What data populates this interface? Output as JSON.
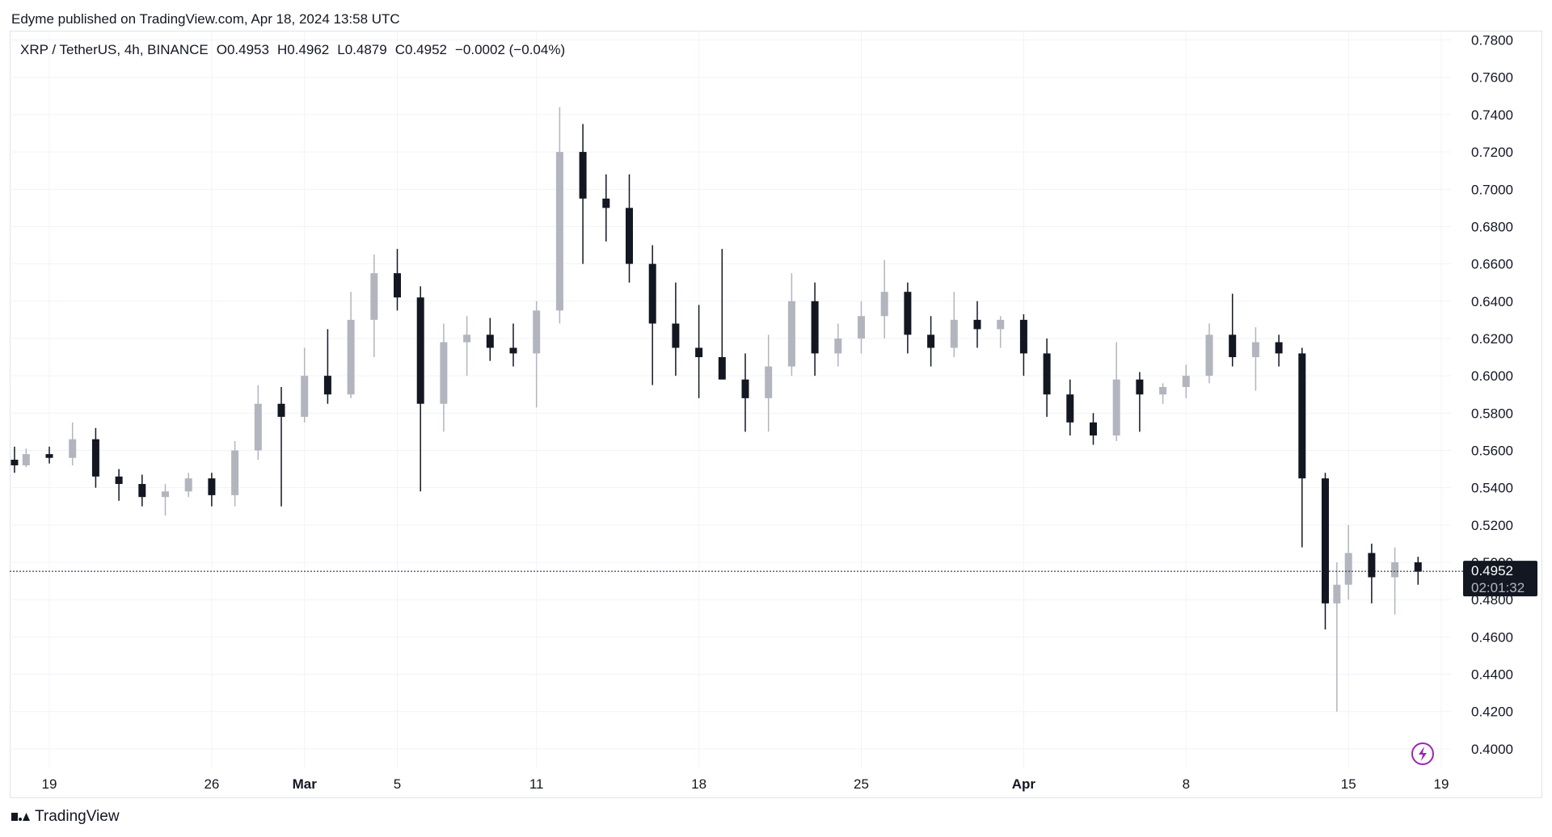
{
  "header": {
    "publisher": "Edyme published on TradingView.com, Apr 18, 2024 13:58 UTC"
  },
  "legend": {
    "symbol": "XRP / TetherUS, 4h, BINANCE",
    "open": "O0.4953",
    "high": "H0.4962",
    "low": "L0.4879",
    "close": "C0.4952",
    "change": "−0.0002 (−0.04%)"
  },
  "last_price": {
    "value": "0.4952",
    "countdown": "02:01:32"
  },
  "brand": {
    "name": "TradingView"
  },
  "colors": {
    "up": "#b2b5be",
    "down": "#131722",
    "grid": "#f0f3fa",
    "accent": "#9c27b0"
  },
  "icons": {
    "lightning": "lightning-icon",
    "logo": "tradingview-logo-icon"
  },
  "chart_data": {
    "type": "candlestick",
    "symbol": "XRP / TetherUS",
    "interval": "4h",
    "exchange": "BINANCE",
    "ylim": [
      0.39,
      0.785
    ],
    "y_ticks": [
      "0.7800",
      "0.7600",
      "0.7400",
      "0.7200",
      "0.7000",
      "0.6800",
      "0.6600",
      "0.6400",
      "0.6200",
      "0.6000",
      "0.5800",
      "0.5600",
      "0.5400",
      "0.5200",
      "0.5000",
      "0.4800",
      "0.4600",
      "0.4400",
      "0.4200",
      "0.4000"
    ],
    "x_ticks": [
      {
        "label": "19",
        "day": 0,
        "bold": false
      },
      {
        "label": "26",
        "day": 7,
        "bold": false
      },
      {
        "label": "Mar",
        "day": 11,
        "bold": true
      },
      {
        "label": "5",
        "day": 15,
        "bold": false
      },
      {
        "label": "11",
        "day": 21,
        "bold": false
      },
      {
        "label": "18",
        "day": 28,
        "bold": false
      },
      {
        "label": "25",
        "day": 35,
        "bold": false
      },
      {
        "label": "Apr",
        "day": 42,
        "bold": true
      },
      {
        "label": "8",
        "day": 49,
        "bold": false
      },
      {
        "label": "15",
        "day": 56,
        "bold": false
      },
      {
        "label": "19",
        "day": 60,
        "bold": false
      }
    ],
    "last_price": 0.4952,
    "ohlc_daily": [
      [
        -1.5,
        0.555,
        0.562,
        0.548,
        0.552
      ],
      [
        -1,
        0.552,
        0.561,
        0.551,
        0.558
      ],
      [
        0,
        0.558,
        0.562,
        0.553,
        0.556
      ],
      [
        1,
        0.556,
        0.575,
        0.552,
        0.566
      ],
      [
        2,
        0.566,
        0.572,
        0.54,
        0.546
      ],
      [
        3,
        0.546,
        0.55,
        0.533,
        0.542
      ],
      [
        4,
        0.542,
        0.547,
        0.53,
        0.535
      ],
      [
        5,
        0.535,
        0.542,
        0.525,
        0.538
      ],
      [
        6,
        0.538,
        0.548,
        0.535,
        0.545
      ],
      [
        7,
        0.545,
        0.548,
        0.53,
        0.536
      ],
      [
        8,
        0.536,
        0.565,
        0.53,
        0.56
      ],
      [
        9,
        0.56,
        0.595,
        0.555,
        0.585
      ],
      [
        10,
        0.585,
        0.594,
        0.53,
        0.578
      ],
      [
        11,
        0.578,
        0.615,
        0.575,
        0.6
      ],
      [
        12,
        0.6,
        0.625,
        0.585,
        0.59
      ],
      [
        13,
        0.59,
        0.645,
        0.588,
        0.63
      ],
      [
        14,
        0.63,
        0.665,
        0.61,
        0.655
      ],
      [
        15,
        0.655,
        0.668,
        0.635,
        0.642
      ],
      [
        16,
        0.642,
        0.648,
        0.538,
        0.585
      ],
      [
        17,
        0.585,
        0.628,
        0.57,
        0.618
      ],
      [
        18,
        0.618,
        0.632,
        0.6,
        0.622
      ],
      [
        19,
        0.622,
        0.631,
        0.608,
        0.615
      ],
      [
        20,
        0.615,
        0.628,
        0.605,
        0.612
      ],
      [
        21,
        0.612,
        0.64,
        0.583,
        0.635
      ],
      [
        22,
        0.635,
        0.744,
        0.628,
        0.72
      ],
      [
        23,
        0.72,
        0.735,
        0.66,
        0.695
      ],
      [
        24,
        0.695,
        0.708,
        0.672,
        0.69
      ],
      [
        25,
        0.69,
        0.708,
        0.65,
        0.66
      ],
      [
        26,
        0.66,
        0.67,
        0.595,
        0.628
      ],
      [
        27,
        0.628,
        0.65,
        0.6,
        0.615
      ],
      [
        28,
        0.615,
        0.638,
        0.588,
        0.61
      ],
      [
        29,
        0.61,
        0.668,
        0.602,
        0.598
      ],
      [
        30,
        0.598,
        0.612,
        0.57,
        0.588
      ],
      [
        31,
        0.588,
        0.622,
        0.57,
        0.605
      ],
      [
        32,
        0.605,
        0.655,
        0.6,
        0.64
      ],
      [
        33,
        0.64,
        0.65,
        0.6,
        0.612
      ],
      [
        34,
        0.612,
        0.628,
        0.605,
        0.62
      ],
      [
        35,
        0.62,
        0.64,
        0.612,
        0.632
      ],
      [
        36,
        0.632,
        0.662,
        0.62,
        0.645
      ],
      [
        37,
        0.645,
        0.65,
        0.612,
        0.622
      ],
      [
        38,
        0.622,
        0.632,
        0.605,
        0.615
      ],
      [
        39,
        0.615,
        0.645,
        0.61,
        0.63
      ],
      [
        40,
        0.63,
        0.64,
        0.615,
        0.625
      ],
      [
        41,
        0.625,
        0.632,
        0.615,
        0.63
      ],
      [
        42,
        0.63,
        0.633,
        0.6,
        0.612
      ],
      [
        43,
        0.612,
        0.62,
        0.578,
        0.59
      ],
      [
        44,
        0.59,
        0.598,
        0.568,
        0.575
      ],
      [
        45,
        0.575,
        0.58,
        0.563,
        0.568
      ],
      [
        46,
        0.568,
        0.618,
        0.565,
        0.598
      ],
      [
        47,
        0.598,
        0.602,
        0.57,
        0.59
      ],
      [
        48,
        0.59,
        0.596,
        0.585,
        0.594
      ],
      [
        49,
        0.594,
        0.606,
        0.588,
        0.6
      ],
      [
        50,
        0.6,
        0.628,
        0.596,
        0.622
      ],
      [
        51,
        0.622,
        0.644,
        0.605,
        0.61
      ],
      [
        52,
        0.61,
        0.626,
        0.592,
        0.618
      ],
      [
        53,
        0.618,
        0.622,
        0.605,
        0.612
      ],
      [
        54,
        0.612,
        0.615,
        0.508,
        0.545
      ],
      [
        55,
        0.545,
        0.548,
        0.464,
        0.478
      ],
      [
        55.5,
        0.478,
        0.5,
        0.42,
        0.488
      ],
      [
        56,
        0.488,
        0.52,
        0.48,
        0.505
      ],
      [
        57,
        0.505,
        0.51,
        0.478,
        0.492
      ],
      [
        58,
        0.492,
        0.508,
        0.472,
        0.5
      ],
      [
        59,
        0.5,
        0.503,
        0.488,
        0.495
      ]
    ]
  }
}
